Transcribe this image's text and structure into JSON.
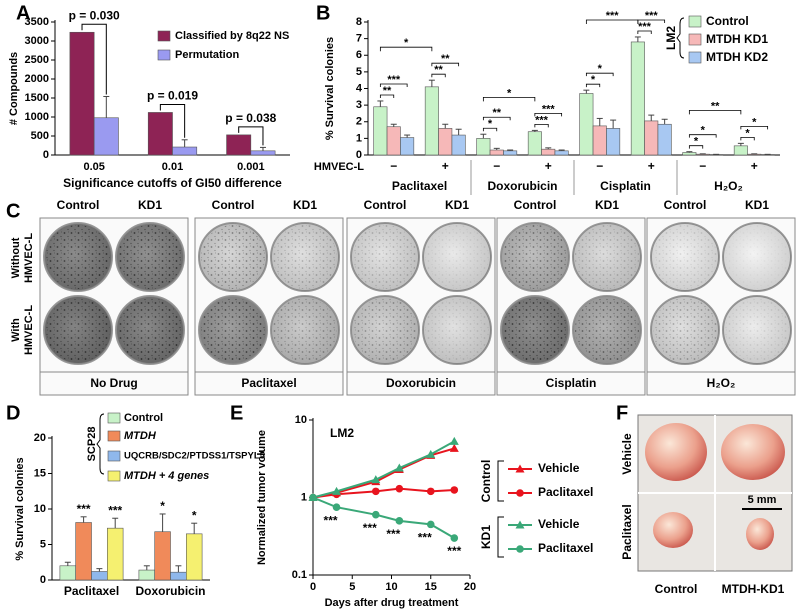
{
  "chart_data": [
    {
      "type": "bar",
      "label": "A",
      "ylabel": "# Compounds",
      "xlabel": "Significance cutoffs of GI50 difference",
      "categories": [
        "0.05",
        "0.01",
        "0.001"
      ],
      "series": [
        {
          "name": "Classified by 8q22 NS",
          "color": "#8e2355",
          "values": [
            3230,
            1120,
            530
          ]
        },
        {
          "name": "Permutation",
          "color": "#9a9af0",
          "values": [
            980,
            210,
            110
          ],
          "errors": [
            560,
            190,
            90
          ]
        }
      ],
      "annotations": [
        "p = 0.030",
        "p = 0.019",
        "p = 0.038"
      ],
      "ylim": [
        0,
        3500
      ],
      "yticks": [
        0,
        500,
        1000,
        1500,
        2000,
        2500,
        3000,
        3500
      ]
    },
    {
      "type": "bar",
      "label": "B",
      "ylabel": "% Survival colonies",
      "categories": [
        "−",
        "+",
        "−",
        "+",
        "−",
        "+",
        "−",
        "+"
      ],
      "groups": [
        "Paclitaxel",
        "Doxorubicin",
        "Cisplatin",
        "H₂O₂"
      ],
      "x_row_label": "HMVEC-L",
      "legend_title": "LM2",
      "series": [
        {
          "name": "Control",
          "color": "#c8f2c8",
          "values": [
            2.9,
            4.1,
            1.0,
            1.4,
            3.7,
            6.8,
            0.15,
            0.55
          ],
          "errors": [
            0.35,
            0.4,
            0.25,
            0.08,
            0.2,
            0.3,
            0.05,
            0.15
          ]
        },
        {
          "name": "MTDH KD1",
          "color": "#f6b8b8",
          "values": [
            1.7,
            1.6,
            0.3,
            0.35,
            1.75,
            2.05,
            0.05,
            0.05
          ],
          "errors": [
            0.15,
            0.25,
            0.1,
            0.08,
            0.45,
            0.35,
            0.02,
            0.02
          ],
          "significance": [
            "**",
            "**",
            "*",
            "***",
            "*",
            "***",
            "*",
            "*"
          ]
        },
        {
          "name": "MTDH KD2",
          "color": "#a8c8f2",
          "values": [
            1.05,
            1.2,
            0.25,
            0.25,
            1.6,
            1.85,
            0.03,
            0.03
          ],
          "errors": [
            0.15,
            0.35,
            0.05,
            0.05,
            0.5,
            0.3,
            0.01,
            0.01
          ],
          "significance": [
            "***",
            "**",
            "**",
            "***",
            "*",
            "***",
            "*",
            "*"
          ]
        }
      ],
      "group_significance": [
        "*",
        "*",
        "***",
        "**"
      ],
      "ylim": [
        0,
        8
      ],
      "yticks": [
        0,
        1,
        2,
        3,
        4,
        5,
        6,
        7,
        8
      ]
    },
    {
      "type": "bar",
      "label": "D",
      "ylabel": "% Survival colonies",
      "legend_title": "SCP28",
      "categories": [
        "Paclitaxel",
        "Doxorubicin"
      ],
      "series": [
        {
          "name": "Control",
          "color": "#c8f2c8",
          "values": [
            2.0,
            1.4
          ],
          "errors": [
            0.5,
            0.6
          ]
        },
        {
          "name": "MTDH",
          "color": "#f08a5a",
          "values": [
            8.1,
            6.8
          ],
          "errors": [
            0.8,
            2.5
          ],
          "significance": [
            "***",
            "*"
          ]
        },
        {
          "name": "UQCRB/SDC2/PTDSS1/TSPYL5",
          "color": "#8fb8ec",
          "values": [
            1.2,
            1.1
          ],
          "errors": [
            0.4,
            0.9
          ]
        },
        {
          "name": "MTDH + 4 genes",
          "color": "#f5f070",
          "values": [
            7.3,
            6.5
          ],
          "errors": [
            1.4,
            1.5
          ],
          "significance": [
            "***",
            "*"
          ]
        }
      ],
      "ylim": [
        0,
        20
      ],
      "yticks": [
        0,
        5,
        10,
        15,
        20
      ]
    },
    {
      "type": "line",
      "label": "E",
      "title": "LM2",
      "ylabel": "Normalized tumor volume",
      "xlabel": "Days after drug treatment",
      "x": [
        0,
        3,
        8,
        11,
        15,
        18
      ],
      "log_y": true,
      "series": [
        {
          "group": "Control",
          "name": "Vehicle",
          "color": "#e8141e",
          "marker": "triangle",
          "values": [
            1,
            1.15,
            1.6,
            2.3,
            3.5,
            4.3
          ]
        },
        {
          "group": "Control",
          "name": "Paclitaxel",
          "color": "#e8141e",
          "marker": "circle",
          "values": [
            1,
            1.1,
            1.2,
            1.3,
            1.2,
            1.25
          ]
        },
        {
          "group": "KD1",
          "name": "Vehicle",
          "color": "#3aa878",
          "marker": "triangle",
          "values": [
            1,
            1.2,
            1.7,
            2.4,
            3.6,
            5.3
          ]
        },
        {
          "group": "KD1",
          "name": "Paclitaxel",
          "color": "#3aa878",
          "marker": "circle",
          "values": [
            1,
            0.75,
            0.6,
            0.5,
            0.45,
            0.3
          ],
          "annotations": [
            null,
            "***",
            "***",
            "***",
            "***",
            "***"
          ]
        }
      ],
      "xlim": [
        0,
        20
      ],
      "xticks": [
        0,
        5,
        10,
        15,
        20
      ],
      "ylim": [
        0.1,
        10
      ],
      "yticks": [
        0.1,
        1,
        10
      ]
    }
  ],
  "panel_c": {
    "label": "C",
    "columns": [
      "Control",
      "KD1"
    ],
    "rows": [
      [
        "Without",
        "HMVEC-L"
      ],
      [
        "With",
        "HMVEC-L"
      ]
    ],
    "treatments": [
      "No Drug",
      "Paclitaxel",
      "Doxorubicin",
      "Cisplatin",
      "H₂O₂"
    ]
  },
  "panel_f": {
    "label": "F",
    "rows": [
      "Vehicle",
      "Paclitaxel"
    ],
    "columns": [
      "Control",
      "MTDH-KD1"
    ],
    "scale": "5 mm"
  }
}
